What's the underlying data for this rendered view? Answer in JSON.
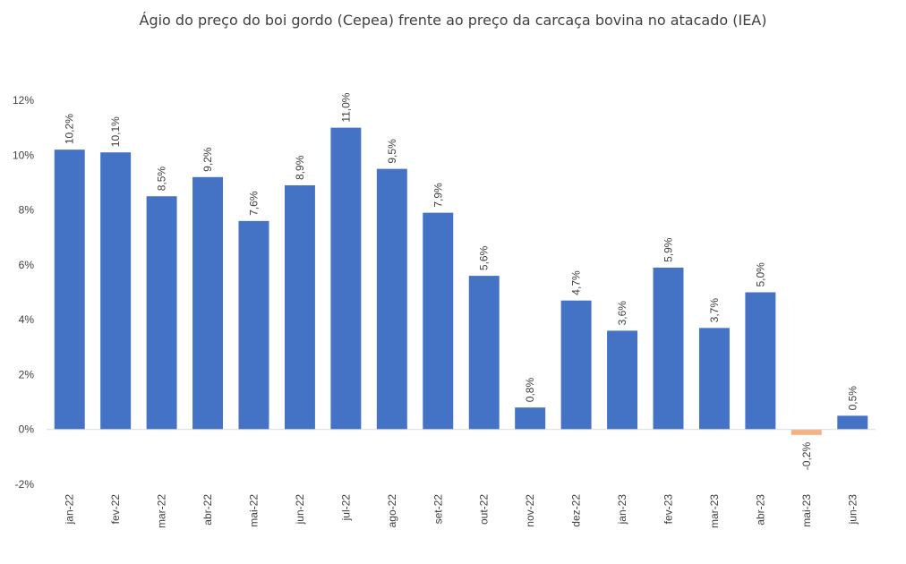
{
  "chart_data": {
    "type": "bar",
    "title": "Ágio do preço do boi gordo (Cepea) frente ao preço da carcaça bovina no atacado (IEA)",
    "xlabel": "",
    "ylabel": "",
    "ylim": [
      -2,
      12
    ],
    "yticks": [
      -2,
      0,
      2,
      4,
      6,
      8,
      10,
      12
    ],
    "ytick_labels": [
      "-2%",
      "0%",
      "2%",
      "4%",
      "6%",
      "8%",
      "10%",
      "12%"
    ],
    "categories": [
      "jan-22",
      "fev-22",
      "mar-22",
      "abr-22",
      "mai-22",
      "jun-22",
      "jul-22",
      "ago-22",
      "set-22",
      "out-22",
      "nov-22",
      "dez-22",
      "jan-23",
      "fev-23",
      "mar-23",
      "abr-23",
      "mai-23",
      "jun-23"
    ],
    "values": [
      10.2,
      10.1,
      8.5,
      9.2,
      7.6,
      8.9,
      11.0,
      9.5,
      7.9,
      5.6,
      0.8,
      4.7,
      3.6,
      5.9,
      3.7,
      5.0,
      -0.2,
      0.5
    ],
    "labels": [
      "10,2%",
      "10,1%",
      "8,5%",
      "9,2%",
      "7,6%",
      "8,9%",
      "11,0%",
      "9,5%",
      "7,9%",
      "5,6%",
      "0,8%",
      "4,7%",
      "3,6%",
      "5,9%",
      "3,7%",
      "5,0%",
      "-0,2%",
      "0,5%"
    ],
    "grid": false,
    "legend": "none",
    "colors": {
      "positive": "#4472C4",
      "negative": "#F4B183",
      "axis": "#D9D9D9"
    }
  }
}
